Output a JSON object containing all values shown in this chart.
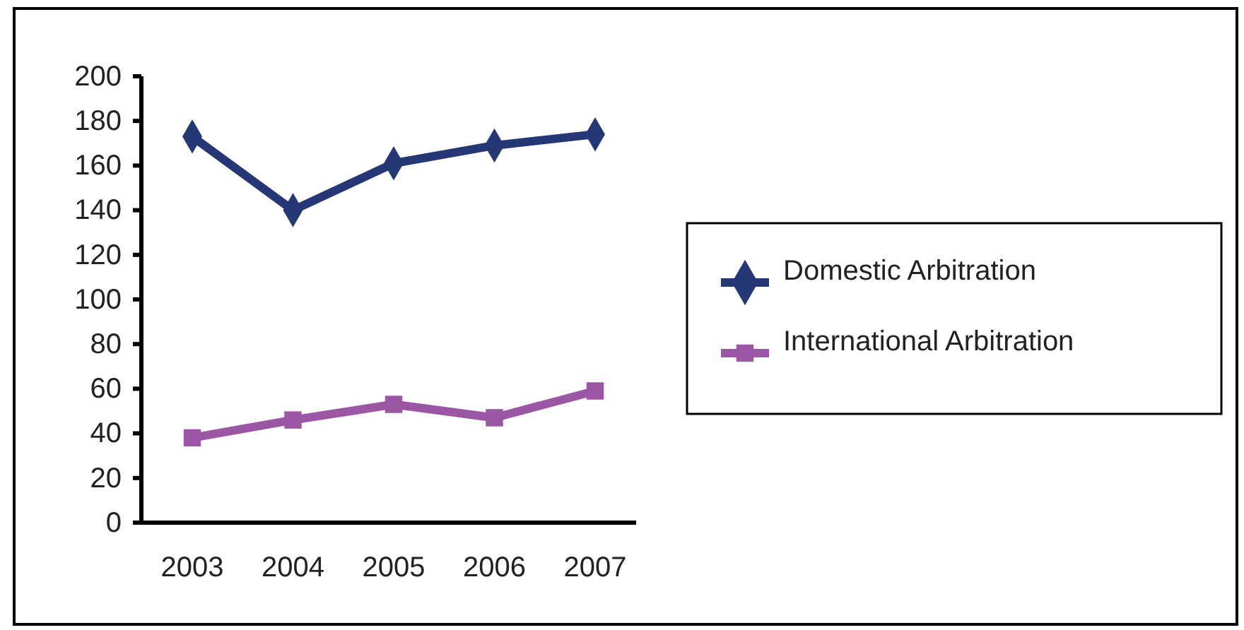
{
  "chart_data": {
    "type": "line",
    "categories": [
      "2003",
      "2004",
      "2005",
      "2006",
      "2007"
    ],
    "series": [
      {
        "name": "Domestic Arbitration",
        "color": "#253775",
        "values": [
          173,
          140,
          161,
          169,
          174
        ],
        "marker": "diamond"
      },
      {
        "name": "International Arbitration",
        "color": "#9b57a3",
        "values": [
          38,
          46,
          53,
          47,
          59
        ],
        "marker": "square"
      }
    ],
    "ylim": [
      0,
      200
    ],
    "yticks": [
      0,
      20,
      40,
      60,
      80,
      100,
      120,
      140,
      160,
      180,
      200
    ],
    "grid": false,
    "legend": "right",
    "line_style": "solid"
  }
}
